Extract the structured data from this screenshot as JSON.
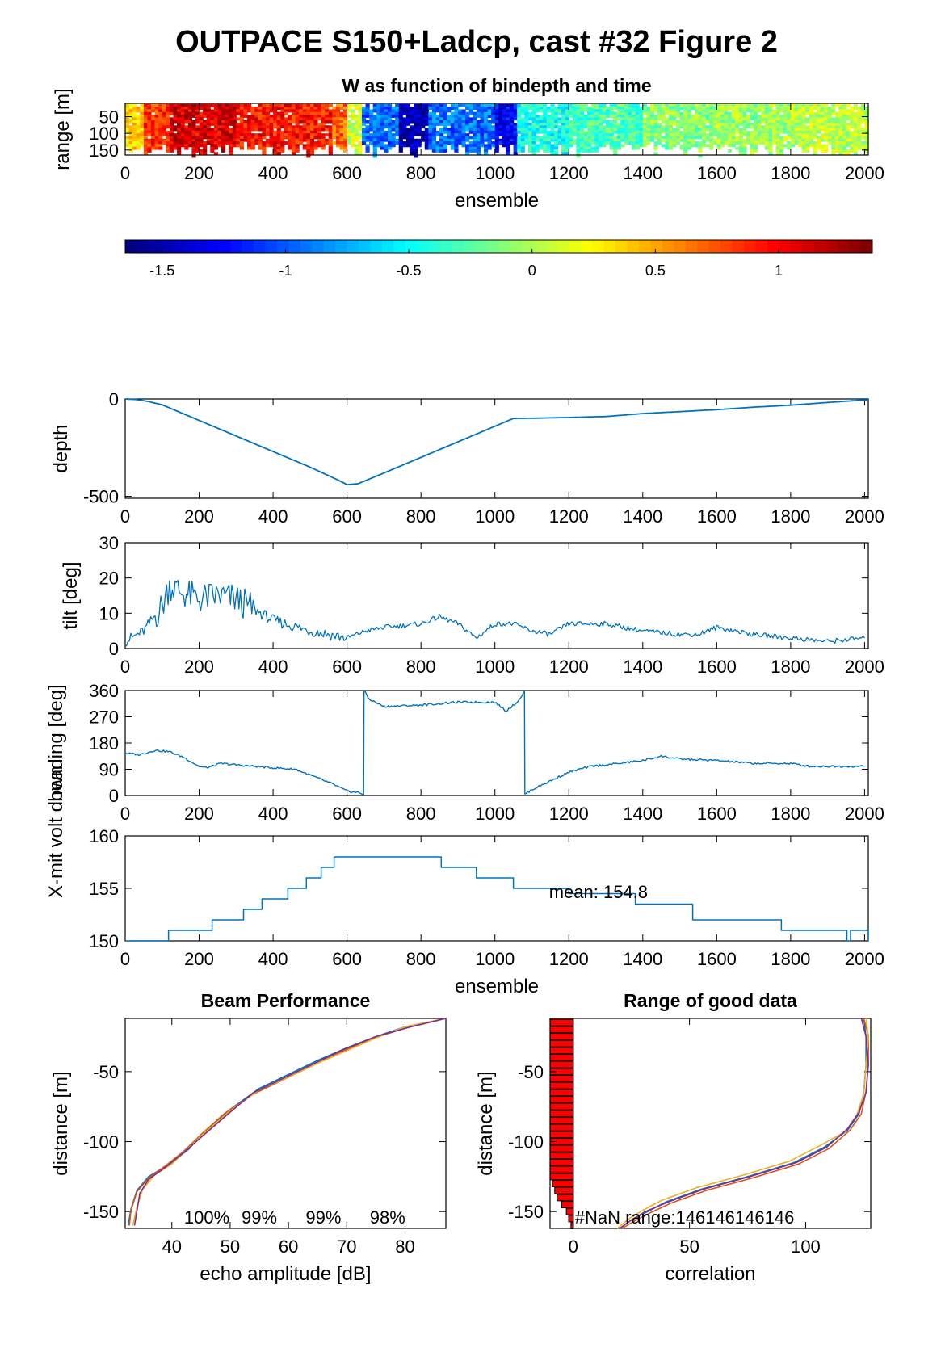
{
  "figure": {
    "title": "OUTPACE S150+Ladcp, cast #32 Figure 2"
  },
  "colors": {
    "line": "#0072BD",
    "beam_lines": [
      "#0072BD",
      "#D95319",
      "#EDB120",
      "#7E2F8E"
    ],
    "bar_fill": "#ff0000",
    "axis": "#000000"
  },
  "chart_data": [
    {
      "id": "w_image",
      "type": "heatmap",
      "title": "W as function of bindepth and time",
      "xlabel": "ensemble",
      "ylabel": "range [m]",
      "xlim": [
        0,
        2010
      ],
      "ylim": [
        10,
        165
      ],
      "ylim_reversed": true,
      "xticks": [
        0,
        200,
        400,
        600,
        800,
        1000,
        1200,
        1400,
        1600,
        1800,
        2000
      ],
      "yticks": [
        50,
        100,
        150
      ],
      "colormap": "jet",
      "clim": [
        -1.65,
        1.38
      ],
      "colorbar_ticks": [
        -1.5,
        -1,
        -0.5,
        0,
        0.5,
        1
      ],
      "w_segments": [
        {
          "x": [
            0,
            50
          ],
          "w": 0.35
        },
        {
          "x": [
            50,
            120
          ],
          "w": 0.85
        },
        {
          "x": [
            120,
            300
          ],
          "w": 1.1
        },
        {
          "x": [
            300,
            560
          ],
          "w": 0.95
        },
        {
          "x": [
            560,
            600
          ],
          "w": 0.7
        },
        {
          "x": [
            600,
            640
          ],
          "w": 0.1
        },
        {
          "x": [
            640,
            740
          ],
          "w": -0.95
        },
        {
          "x": [
            740,
            820
          ],
          "w": -1.5
        },
        {
          "x": [
            820,
            1000
          ],
          "w": -0.95
        },
        {
          "x": [
            1000,
            1060
          ],
          "w": -1.3
        },
        {
          "x": [
            1060,
            1200
          ],
          "w": -0.45
        },
        {
          "x": [
            1200,
            1400
          ],
          "w": -0.3
        },
        {
          "x": [
            1400,
            1600
          ],
          "w": -0.1
        },
        {
          "x": [
            1600,
            1800
          ],
          "w": -0.05
        },
        {
          "x": [
            1800,
            2010
          ],
          "w": 0.05
        }
      ]
    },
    {
      "id": "depth",
      "type": "line",
      "xlabel": "",
      "ylabel": "depth",
      "xlim": [
        0,
        2010
      ],
      "ylim": [
        -510,
        0
      ],
      "xticks": [
        0,
        200,
        400,
        600,
        800,
        1000,
        1200,
        1400,
        1600,
        1800,
        2000
      ],
      "yticks": [
        -500,
        0
      ],
      "x": [
        0,
        30,
        60,
        100,
        200,
        300,
        400,
        500,
        580,
        600,
        630,
        700,
        800,
        900,
        1000,
        1050,
        1100,
        1200,
        1300,
        1400,
        1600,
        1700,
        1800,
        1900,
        2000,
        2010
      ],
      "y": [
        0,
        -3,
        -12,
        -30,
        -110,
        -190,
        -270,
        -350,
        -420,
        -440,
        -435,
        -380,
        -300,
        -220,
        -140,
        -100,
        -99,
        -95,
        -90,
        -75,
        -55,
        -42,
        -32,
        -18,
        -5,
        -5
      ]
    },
    {
      "id": "tilt",
      "type": "line",
      "xlabel": "",
      "ylabel": "tilt [deg]",
      "xlim": [
        0,
        2010
      ],
      "ylim": [
        0,
        30
      ],
      "xticks": [
        0,
        200,
        400,
        600,
        800,
        1000,
        1200,
        1400,
        1600,
        1800,
        2000
      ],
      "yticks": [
        0,
        10,
        20,
        30
      ],
      "x": [
        0,
        50,
        100,
        120,
        150,
        200,
        250,
        300,
        350,
        400,
        500,
        600,
        650,
        700,
        800,
        850,
        900,
        950,
        1000,
        1050,
        1100,
        1150,
        1200,
        1300,
        1400,
        1500,
        1550,
        1600,
        1650,
        1700,
        1800,
        1900,
        2000
      ],
      "y": [
        2,
        5,
        12,
        18,
        16,
        14,
        15,
        14,
        11,
        8,
        5,
        3,
        5,
        6,
        7,
        9,
        7,
        3,
        7,
        7,
        5,
        4,
        7,
        7,
        5,
        4,
        4,
        6,
        5,
        4,
        3,
        2,
        3
      ]
    },
    {
      "id": "heading",
      "type": "line",
      "xlabel": "",
      "ylabel": "heading [deg]",
      "xlim": [
        0,
        2010
      ],
      "ylim": [
        0,
        360
      ],
      "xticks": [
        0,
        200,
        400,
        600,
        800,
        1000,
        1200,
        1400,
        1600,
        1800,
        2000
      ],
      "yticks": [
        0,
        90,
        180,
        270,
        360
      ],
      "x": [
        0,
        40,
        80,
        120,
        160,
        200,
        220,
        260,
        300,
        400,
        460,
        500,
        560,
        600,
        630,
        645,
        646,
        660,
        700,
        800,
        900,
        1000,
        1030,
        1060,
        1080,
        1081,
        1100,
        1150,
        1200,
        1260,
        1300,
        1400,
        1450,
        1500,
        1600,
        1700,
        1800,
        1850,
        1900,
        2000
      ],
      "y": [
        145,
        140,
        155,
        150,
        130,
        100,
        95,
        110,
        105,
        95,
        90,
        70,
        40,
        15,
        10,
        5,
        360,
        330,
        305,
        310,
        320,
        320,
        290,
        320,
        355,
        5,
        20,
        50,
        80,
        100,
        105,
        120,
        135,
        125,
        120,
        110,
        110,
        100,
        100,
        100
      ]
    },
    {
      "id": "voltage",
      "type": "line",
      "xlabel": "ensemble",
      "ylabel": "X-mit volt down",
      "xlim": [
        0,
        2010
      ],
      "ylim": [
        150,
        160
      ],
      "xticks": [
        0,
        200,
        400,
        600,
        800,
        1000,
        1200,
        1400,
        1600,
        1800,
        2000
      ],
      "yticks": [
        150,
        155,
        160
      ],
      "annotation": "mean: 154.8",
      "step_x": [
        0,
        115,
        117,
        125,
        127,
        235,
        320,
        370,
        440,
        490,
        530,
        565,
        855,
        950,
        1050,
        1200,
        1380,
        1535,
        1775,
        1950,
        1952,
        1960,
        1962,
        2010
      ],
      "step_y": [
        150,
        150,
        151,
        151,
        151,
        152,
        153,
        154,
        155,
        156,
        157,
        158,
        157,
        156,
        155,
        154.5,
        153.5,
        152,
        151,
        151,
        150,
        150,
        151,
        150
      ]
    },
    {
      "id": "beam_performance",
      "type": "line",
      "title": "Beam Performance",
      "xlabel": "echo amplitude [dB]",
      "ylabel": "distance [m]",
      "xlim": [
        32,
        87
      ],
      "ylim": [
        -162,
        -12
      ],
      "xticks": [
        40,
        50,
        60,
        70,
        80
      ],
      "yticks": [
        -150,
        -100,
        -50
      ],
      "percent_labels": [
        "100%",
        "99%",
        "99%",
        "98%"
      ],
      "series": [
        {
          "x": [
            87,
            80,
            75,
            70,
            65,
            60,
            55,
            50,
            45,
            43,
            40,
            36,
            34,
            33,
            32.5
          ],
          "y": [
            -12,
            -18,
            -25,
            -33,
            -42,
            -52,
            -62,
            -77,
            -95,
            -105,
            -115,
            -125,
            -135,
            -148,
            -160
          ]
        },
        {
          "x": [
            87,
            80,
            74,
            69,
            64,
            59,
            54,
            49,
            45,
            42,
            39,
            36,
            34,
            33,
            32.7
          ],
          "y": [
            -12,
            -19,
            -27,
            -36,
            -46,
            -56,
            -66,
            -80,
            -95,
            -107,
            -117,
            -126,
            -136,
            -149,
            -160
          ]
        },
        {
          "x": [
            87,
            80,
            75,
            70,
            65,
            60,
            55,
            50,
            45,
            42,
            40,
            37,
            35,
            34,
            33.3
          ],
          "y": [
            -12,
            -18,
            -26,
            -35,
            -44,
            -54,
            -63,
            -78,
            -96,
            -108,
            -116,
            -124,
            -134,
            -147,
            -160
          ]
        },
        {
          "x": [
            87,
            81,
            75,
            69,
            64,
            59,
            54,
            50,
            45,
            42,
            39,
            36,
            34.5,
            34,
            33.6
          ],
          "y": [
            -12,
            -18,
            -25,
            -35,
            -45,
            -55,
            -65,
            -79,
            -97,
            -108,
            -118,
            -127,
            -137,
            -150,
            -160
          ]
        }
      ]
    },
    {
      "id": "range_good_data",
      "type": "line",
      "title": "Range of good data",
      "xlabel": "correlation",
      "ylabel": "distance [m]",
      "xlim": [
        -10,
        128
      ],
      "ylim": [
        -162,
        -12
      ],
      "xticks": [
        0,
        50,
        100
      ],
      "yticks": [
        -150,
        -100,
        -50
      ],
      "annotation": "#NaN range:146146146146",
      "good_bars": {
        "bins": [
          -15,
          -20,
          -25,
          -30,
          -35,
          -40,
          -45,
          -50,
          -55,
          -60,
          -65,
          -70,
          -75,
          -80,
          -85,
          -90,
          -95,
          -100,
          -105,
          -110,
          -115,
          -120,
          -125,
          -130,
          -135,
          -140,
          -145,
          -150,
          -155,
          -160
        ],
        "lengths": [
          10,
          10,
          10,
          10,
          10,
          10,
          10,
          10,
          10,
          10,
          10,
          10,
          10,
          10,
          10,
          10,
          10,
          10,
          10,
          10,
          10,
          10,
          10,
          9,
          8,
          7,
          5,
          3,
          2,
          1
        ]
      },
      "series": [
        {
          "x": [
            125,
            126,
            126,
            125,
            123,
            118,
            108,
            95,
            75,
            55,
            40,
            32,
            25,
            20
          ],
          "y": [
            -12,
            -25,
            -45,
            -65,
            -80,
            -92,
            -104,
            -115,
            -125,
            -134,
            -143,
            -150,
            -156,
            -162
          ]
        },
        {
          "x": [
            125,
            127,
            127,
            126,
            124,
            119,
            110,
            97,
            77,
            57,
            42,
            33,
            26,
            21
          ],
          "y": [
            -12,
            -24,
            -44,
            -64,
            -80,
            -92,
            -105,
            -116,
            -126,
            -135,
            -144,
            -151,
            -157,
            -162
          ]
        },
        {
          "x": [
            126,
            127,
            126,
            125,
            122,
            117,
            106,
            93,
            73,
            53,
            38,
            30,
            24,
            19
          ],
          "y": [
            -12,
            -26,
            -46,
            -66,
            -81,
            -93,
            -103,
            -114,
            -124,
            -133,
            -142,
            -149,
            -155,
            -162
          ]
        },
        {
          "x": [
            124,
            126,
            127,
            126,
            123,
            118,
            109,
            96,
            76,
            56,
            41,
            31,
            25,
            20
          ],
          "y": [
            -12,
            -25,
            -45,
            -65,
            -79,
            -91,
            -104,
            -115,
            -125,
            -134,
            -143,
            -150,
            -156,
            -162
          ]
        }
      ]
    }
  ]
}
